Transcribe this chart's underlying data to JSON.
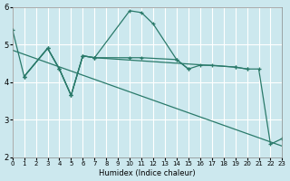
{
  "xlabel": "Humidex (Indice chaleur)",
  "background_color": "#cce8ee",
  "grid_color": "#ffffff",
  "line_color": "#2a7a6a",
  "xlim": [
    0,
    23
  ],
  "ylim": [
    2,
    6
  ],
  "yticks": [
    2,
    3,
    4,
    5,
    6
  ],
  "xticks": [
    0,
    1,
    2,
    3,
    4,
    5,
    6,
    7,
    8,
    9,
    10,
    11,
    12,
    13,
    14,
    15,
    16,
    17,
    18,
    19,
    20,
    21,
    22,
    23
  ],
  "line1_x": [
    0,
    1,
    3,
    4,
    5,
    6,
    7,
    10,
    11,
    12,
    14,
    15
  ],
  "line1_y": [
    5.4,
    4.15,
    4.9,
    4.35,
    3.65,
    4.7,
    4.65,
    5.9,
    5.85,
    5.55,
    4.6,
    4.35
  ],
  "line2_x": [
    1,
    3,
    4,
    5,
    6,
    7,
    10,
    11,
    14,
    15,
    16,
    17,
    19,
    20
  ],
  "line2_y": [
    4.15,
    4.9,
    4.35,
    3.65,
    4.7,
    4.65,
    4.65,
    4.65,
    4.6,
    4.35,
    4.45,
    4.45,
    4.4,
    4.35
  ],
  "line3_x": [
    1,
    3,
    4,
    5,
    6,
    7,
    19,
    20,
    21,
    22,
    23
  ],
  "line3_y": [
    4.15,
    4.9,
    4.35,
    3.65,
    4.7,
    4.65,
    4.4,
    4.35,
    4.35,
    2.35,
    2.5
  ],
  "trend_x": [
    0,
    23
  ],
  "trend_y": [
    4.85,
    2.3
  ]
}
